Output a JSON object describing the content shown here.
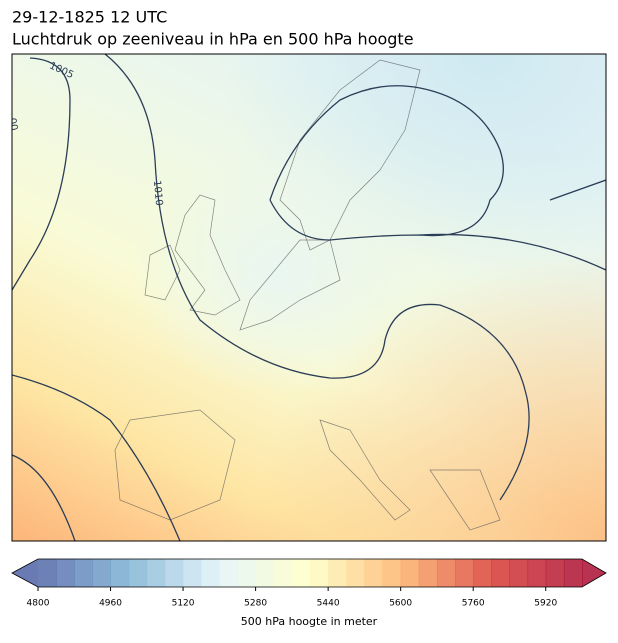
{
  "header": {
    "date": "29-12-1825 12 UTC",
    "title": "Luchtdruk op zeeniveau in hPa en 500 hPa hoogte"
  },
  "contour_labels": [
    "1005",
    "1010",
    "00"
  ],
  "colorbar": {
    "label": "500 hPa hoogte in meter",
    "lim": [
      4800,
      6000
    ],
    "ticks": [
      4800,
      4960,
      5120,
      5280,
      5440,
      5600,
      5760,
      5920
    ]
  }
}
